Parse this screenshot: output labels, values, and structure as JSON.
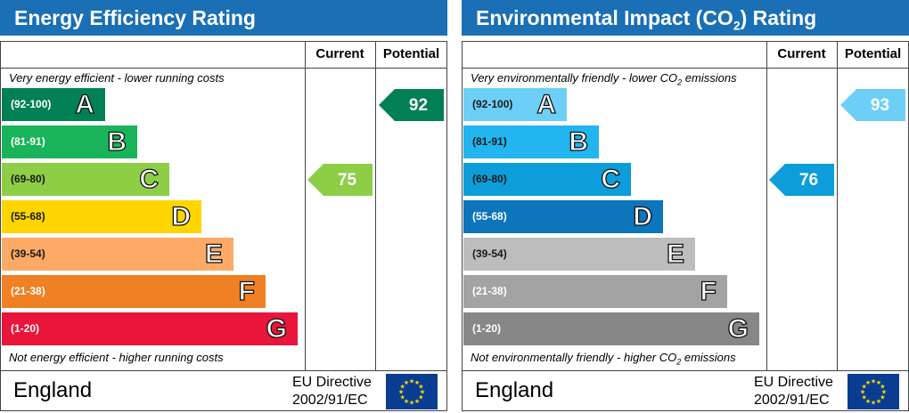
{
  "chart_data": [
    {
      "type": "bar",
      "title": "Energy Efficiency Rating",
      "columns": [
        "Current",
        "Potential"
      ],
      "top_note": "Very energy efficient - lower running costs",
      "bottom_note": "Not energy efficient - higher running costs",
      "bands": [
        {
          "range": "(92-100)",
          "letter": "A",
          "color": "#008054"
        },
        {
          "range": "(81-91)",
          "letter": "B",
          "color": "#19b459"
        },
        {
          "range": "(69-80)",
          "letter": "C",
          "color": "#8dce46"
        },
        {
          "range": "(55-68)",
          "letter": "D",
          "color": "#ffd500"
        },
        {
          "range": "(39-54)",
          "letter": "E",
          "color": "#fcaa65"
        },
        {
          "range": "(21-38)",
          "letter": "F",
          "color": "#ef8023"
        },
        {
          "range": "(1-20)",
          "letter": "G",
          "color": "#e9153b"
        }
      ],
      "current": {
        "value": 75,
        "band": "C",
        "color": "#8dce46"
      },
      "potential": {
        "value": 92,
        "band": "A",
        "color": "#008054"
      },
      "country": "England",
      "directive_line1": "EU Directive",
      "directive_line2": "2002/91/EC"
    },
    {
      "type": "bar",
      "title_parts": [
        "Environmental Impact (CO",
        "2",
        ") Rating"
      ],
      "columns": [
        "Current",
        "Potential"
      ],
      "top_note_parts": [
        "Very environmentally friendly - lower CO",
        "2",
        " emissions"
      ],
      "bottom_note_parts": [
        "Not environmentally friendly - higher CO",
        "2",
        " emissions"
      ],
      "bands": [
        {
          "range": "(92-100)",
          "letter": "A",
          "color": "#6ecff6"
        },
        {
          "range": "(81-91)",
          "letter": "B",
          "color": "#22b5f0"
        },
        {
          "range": "(69-80)",
          "letter": "C",
          "color": "#0d9ddb"
        },
        {
          "range": "(55-68)",
          "letter": "D",
          "color": "#0c75bb"
        },
        {
          "range": "(39-54)",
          "letter": "E",
          "color": "#bdbdbd"
        },
        {
          "range": "(21-38)",
          "letter": "F",
          "color": "#a3a3a3"
        },
        {
          "range": "(1-20)",
          "letter": "G",
          "color": "#878787"
        }
      ],
      "current": {
        "value": 76,
        "band": "C",
        "color": "#0d9ddb"
      },
      "potential": {
        "value": 93,
        "band": "A",
        "color": "#6ecff6"
      },
      "country": "England",
      "directive_line1": "EU Directive",
      "directive_line2": "2002/91/EC"
    }
  ]
}
